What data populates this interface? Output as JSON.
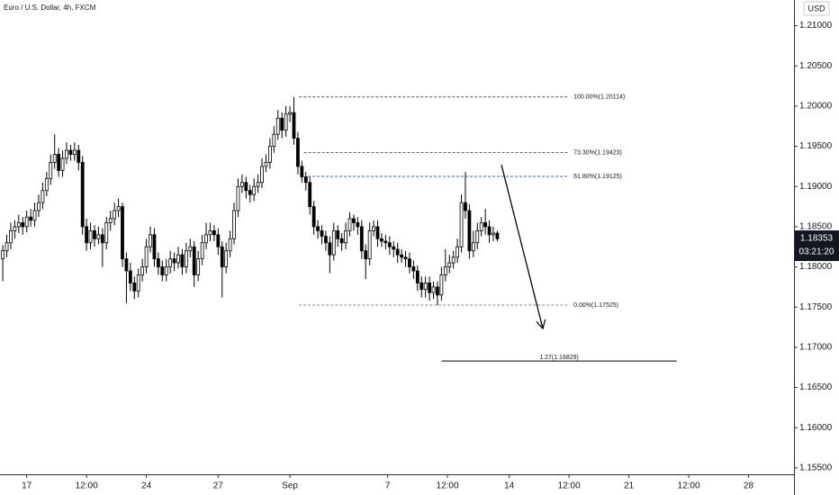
{
  "chart_data": {
    "type": "candlestick",
    "title": "Euro / U.S. Dollar, 4h, FXCM",
    "currency": "USD",
    "x": [
      0,
      1,
      2,
      3,
      4,
      5,
      6,
      7,
      8,
      9,
      10,
      11,
      12,
      13,
      14,
      15,
      16,
      17,
      18,
      19,
      20,
      21,
      22,
      23,
      24,
      25,
      26,
      27,
      28,
      29,
      30,
      31,
      32,
      33,
      34,
      35,
      36,
      37,
      38,
      39,
      40,
      41,
      42,
      43,
      44,
      45,
      46,
      47,
      48,
      49,
      50,
      51,
      52,
      53,
      54,
      55,
      56,
      57,
      58,
      59,
      60,
      61,
      62,
      63,
      64,
      65,
      66,
      67,
      68,
      69,
      70,
      71,
      72,
      73,
      74,
      75,
      76,
      77,
      78,
      79,
      80,
      81,
      82,
      83,
      84,
      85,
      86,
      87,
      88,
      89,
      90,
      91,
      92,
      93,
      94,
      95,
      96,
      97,
      98,
      99,
      100,
      101,
      102,
      103,
      104,
      105,
      106,
      107,
      108,
      109,
      110,
      111,
      112,
      113,
      114,
      115,
      116,
      117,
      118,
      119,
      120,
      121,
      122,
      123,
      124
    ],
    "open": [
      1.181,
      1.182,
      1.183,
      1.1845,
      1.185,
      1.1855,
      1.185,
      1.1862,
      1.1858,
      1.187,
      1.188,
      1.1895,
      1.191,
      1.193,
      1.194,
      1.192,
      1.1935,
      1.1945,
      1.194,
      1.1945,
      1.193,
      1.185,
      1.183,
      1.1845,
      1.1835,
      1.184,
      1.183,
      1.1855,
      1.186,
      1.187,
      1.1875,
      1.181,
      1.1795,
      1.178,
      1.177,
      1.179,
      1.18,
      1.1825,
      1.184,
      1.181,
      1.18,
      1.179,
      1.18,
      1.181,
      1.1805,
      1.1815,
      1.18,
      1.182,
      1.1825,
      1.179,
      1.181,
      1.183,
      1.184,
      1.1845,
      1.184,
      1.1825,
      1.18,
      1.182,
      1.1835,
      1.187,
      1.19,
      1.1905,
      1.1895,
      1.189,
      1.19,
      1.1905,
      1.1925,
      1.193,
      1.195,
      1.1965,
      1.1985,
      1.197,
      1.199,
      1.1992,
      1.196,
      1.1925,
      1.1912,
      1.1905,
      1.1875,
      1.185,
      1.1845,
      1.1838,
      1.183,
      1.1815,
      1.1845,
      1.1835,
      1.183,
      1.1845,
      1.186,
      1.1855,
      1.185,
      1.182,
      1.181,
      1.1845,
      1.185,
      1.1835,
      1.1832,
      1.183,
      1.1825,
      1.1822,
      1.1815,
      1.1812,
      1.181,
      1.18,
      1.1795,
      1.178,
      1.1772,
      1.178,
      1.1768,
      1.1775,
      1.1765,
      1.179,
      1.18,
      1.1805,
      1.1812,
      1.1825,
      1.188,
      1.187,
      1.182,
      1.183,
      1.1845,
      1.1855,
      1.185,
      1.184,
      1.1842
    ],
    "high": [
      1.1827,
      1.184,
      1.1855,
      1.1858,
      1.1865,
      1.1862,
      1.187,
      1.1872,
      1.188,
      1.189,
      1.1905,
      1.1918,
      1.194,
      1.1965,
      1.1948,
      1.1945,
      1.1955,
      1.1952,
      1.1955,
      1.1952,
      1.1938,
      1.186,
      1.1855,
      1.1852,
      1.185,
      1.1848,
      1.1862,
      1.187,
      1.188,
      1.1885,
      1.188,
      1.1818,
      1.1805,
      1.1788,
      1.1798,
      1.181,
      1.1835,
      1.185,
      1.1848,
      1.1818,
      1.1808,
      1.181,
      1.182,
      1.1818,
      1.1825,
      1.1822,
      1.183,
      1.1835,
      1.1832,
      1.182,
      1.184,
      1.1855,
      1.1855,
      1.1852,
      1.1848,
      1.1832,
      1.183,
      1.1845,
      1.188,
      1.191,
      1.1915,
      1.1912,
      1.1902,
      1.191,
      1.1915,
      1.1935,
      1.194,
      1.196,
      1.1975,
      1.1995,
      1.1992,
      1.2,
      1.2,
      1.20114,
      1.1968,
      1.1932,
      1.1918,
      1.1912,
      1.1882,
      1.1858,
      1.1852,
      1.1845,
      1.1838,
      1.1855,
      1.1852,
      1.1842,
      1.1855,
      1.1868,
      1.1865,
      1.1862,
      1.1858,
      1.1828,
      1.1855,
      1.1858,
      1.1858,
      1.1842,
      1.184,
      1.1838,
      1.1832,
      1.183,
      1.1822,
      1.182,
      1.1818,
      1.1808,
      1.1802,
      1.1788,
      1.1788,
      1.1788,
      1.1782,
      1.1782,
      1.18,
      1.1822,
      1.1815,
      1.182,
      1.1835,
      1.189,
      1.1918,
      1.1878,
      1.1845,
      1.1855,
      1.1862,
      1.1872,
      1.1858,
      1.185,
      1.1845
    ],
    "low": [
      1.1782,
      1.1812,
      1.1822,
      1.1835,
      1.1842,
      1.184,
      1.1843,
      1.185,
      1.185,
      1.1862,
      1.1872,
      1.1888,
      1.1902,
      1.1922,
      1.1912,
      1.1912,
      1.1928,
      1.1932,
      1.1932,
      1.192,
      1.184,
      1.182,
      1.1822,
      1.1825,
      1.1828,
      1.18,
      1.1822,
      1.1845,
      1.1852,
      1.1862,
      1.18,
      1.1755,
      1.177,
      1.176,
      1.1762,
      1.1782,
      1.1792,
      1.1818,
      1.18,
      1.179,
      1.1782,
      1.1782,
      1.1792,
      1.1795,
      1.1798,
      1.179,
      1.1792,
      1.1812,
      1.1775,
      1.1782,
      1.1802,
      1.1822,
      1.1832,
      1.1832,
      1.1815,
      1.1762,
      1.1792,
      1.1812,
      1.1828,
      1.1862,
      1.1892,
      1.1885,
      1.188,
      1.1882,
      1.1892,
      1.1898,
      1.1918,
      1.1922,
      1.1942,
      1.1958,
      1.196,
      1.1962,
      1.198,
      1.1952,
      1.1915,
      1.1905,
      1.1895,
      1.1865,
      1.184,
      1.1835,
      1.1828,
      1.182,
      1.1792,
      1.1808,
      1.1825,
      1.182,
      1.1822,
      1.1838,
      1.1845,
      1.184,
      1.181,
      1.1785,
      1.1802,
      1.1838,
      1.1825,
      1.1825,
      1.1822,
      1.1815,
      1.1812,
      1.1805,
      1.1805,
      1.18,
      1.1792,
      1.1785,
      1.177,
      1.1762,
      1.1762,
      1.1758,
      1.176,
      1.17525,
      1.1758,
      1.1782,
      1.1792,
      1.1798,
      1.1805,
      1.1818,
      1.186,
      1.181,
      1.1812,
      1.1822,
      1.1838,
      1.184,
      1.183,
      1.1832,
      1.1832
    ],
    "close": [
      1.182,
      1.183,
      1.1845,
      1.185,
      1.1855,
      1.185,
      1.1862,
      1.1858,
      1.187,
      1.188,
      1.1895,
      1.191,
      1.193,
      1.194,
      1.192,
      1.1935,
      1.1945,
      1.194,
      1.1945,
      1.193,
      1.185,
      1.183,
      1.1845,
      1.1835,
      1.184,
      1.183,
      1.1855,
      1.186,
      1.187,
      1.1875,
      1.181,
      1.1795,
      1.178,
      1.177,
      1.179,
      1.18,
      1.1825,
      1.184,
      1.181,
      1.18,
      1.179,
      1.18,
      1.181,
      1.1805,
      1.1815,
      1.18,
      1.182,
      1.1825,
      1.179,
      1.181,
      1.183,
      1.184,
      1.1845,
      1.184,
      1.1825,
      1.18,
      1.182,
      1.1835,
      1.187,
      1.19,
      1.1905,
      1.1895,
      1.189,
      1.19,
      1.1905,
      1.1925,
      1.193,
      1.195,
      1.1965,
      1.1985,
      1.197,
      1.199,
      1.1992,
      1.196,
      1.1925,
      1.1912,
      1.1905,
      1.1875,
      1.185,
      1.1845,
      1.1838,
      1.183,
      1.1815,
      1.1845,
      1.1835,
      1.183,
      1.1845,
      1.186,
      1.1855,
      1.185,
      1.182,
      1.181,
      1.1845,
      1.185,
      1.1835,
      1.1832,
      1.183,
      1.1825,
      1.1822,
      1.1815,
      1.1812,
      1.181,
      1.18,
      1.1795,
      1.178,
      1.1772,
      1.178,
      1.1768,
      1.1775,
      1.1765,
      1.179,
      1.18,
      1.1805,
      1.1812,
      1.1825,
      1.188,
      1.187,
      1.182,
      1.183,
      1.1845,
      1.1855,
      1.185,
      1.184,
      1.1842,
      1.1835
    ],
    "up_color": "#ffffff",
    "down_color": "#000000",
    "xlim": [
      -0.7,
      198.4
    ],
    "xticks": [
      {
        "value": 6,
        "label": "17"
      },
      {
        "value": 21,
        "label": "12:00"
      },
      {
        "value": 36,
        "label": "24"
      },
      {
        "value": 54,
        "label": "27"
      },
      {
        "value": 72,
        "label": "Sep"
      },
      {
        "value": 96.5,
        "label": "7"
      },
      {
        "value": 111.5,
        "label": "12:00"
      },
      {
        "value": 127,
        "label": "14"
      },
      {
        "value": 142,
        "label": "12:00"
      },
      {
        "value": 157,
        "label": "21"
      },
      {
        "value": 172,
        "label": "12:00"
      },
      {
        "value": 187,
        "label": "28"
      }
    ],
    "ylim": [
      1.1542,
      1.2132
    ],
    "yticks": [
      {
        "value": 1.155,
        "label": "1.15500"
      },
      {
        "value": 1.16,
        "label": "1.16000"
      },
      {
        "value": 1.165,
        "label": "1.16500"
      },
      {
        "value": 1.17,
        "label": "1.17000"
      },
      {
        "value": 1.175,
        "label": "1.17500"
      },
      {
        "value": 1.18,
        "label": "1.18000"
      },
      {
        "value": 1.185,
        "label": "1.18500"
      },
      {
        "value": 1.19,
        "label": "1.19000"
      },
      {
        "value": 1.195,
        "label": "1.19500"
      },
      {
        "value": 1.2,
        "label": "1.20000"
      },
      {
        "value": 1.205,
        "label": "1.20500"
      },
      {
        "value": 1.21,
        "label": "1.21000"
      }
    ],
    "last_price": {
      "value": 1.18353,
      "label": "1.18353",
      "countdown": "03:21:20"
    },
    "levels": [
      {
        "label": "100.00%(1.20114)",
        "value": 1.20114,
        "x": [
          74.3,
          142
        ],
        "color": "#555555"
      },
      {
        "label": "73.30%(1.19423)",
        "value": 1.19423,
        "x": [
          75.5,
          142
        ],
        "color": "#2962ff"
      },
      {
        "label": "61.80%(1.19125)",
        "value": 1.19125,
        "x": [
          76.5,
          142
        ],
        "color": "#2962ff"
      },
      {
        "label": "0.00%(1.17525)",
        "value": 1.17525,
        "x": [
          74.3,
          142
        ],
        "color": "#888888"
      },
      {
        "label": "1.27(1.16829)",
        "value": 1.16829,
        "x": [
          110,
          169
        ],
        "color": "#000000",
        "solid": true
      }
    ]
  }
}
